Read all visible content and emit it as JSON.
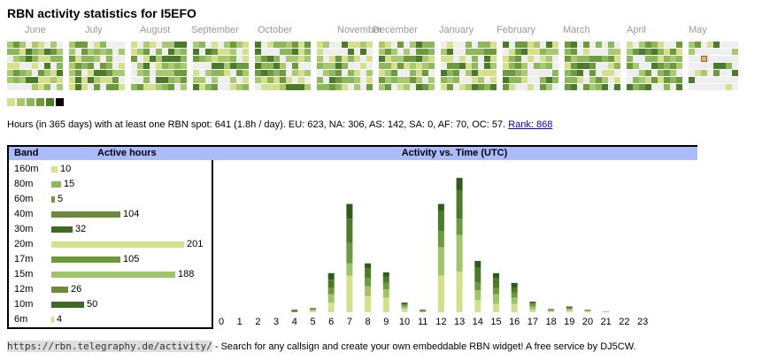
{
  "title": "RBN activity statistics for I5EFO",
  "months": [
    "June",
    "July",
    "August",
    "September",
    "October",
    "November",
    "December",
    "January",
    "February",
    "March",
    "April",
    "May"
  ],
  "colors": {
    "empty": "#eeeeee",
    "levels": [
      "#d5e08b",
      "#a8c970",
      "#8cb75a",
      "#6d9a3c",
      "#4a7a2a",
      "#000000"
    ],
    "header_bg": "#aabbff",
    "today_border": "#e83e1c"
  },
  "summary": {
    "text": "Hours (in 365 days) with at least one RBN spot: 641 (1.8h / day). EU: 623, NA: 306, AS: 142, SA: 0, AF: 70, OC: 57.",
    "rank_link": "Rank: 868"
  },
  "band_table": {
    "col_band": "Band",
    "col_hours": "Active hours",
    "rows": [
      {
        "band": "160m",
        "hours": 10,
        "color": "#d5e08b"
      },
      {
        "band": "80m",
        "hours": 15,
        "color": "#8cb75a"
      },
      {
        "band": "60m",
        "hours": 5,
        "color": "#6d9a3c"
      },
      {
        "band": "40m",
        "hours": 104,
        "color": "#6d8a3c"
      },
      {
        "band": "30m",
        "hours": 32,
        "color": "#3e6a26"
      },
      {
        "band": "20m",
        "hours": 201,
        "color": "#d5e08b"
      },
      {
        "band": "17m",
        "hours": 105,
        "color": "#6a9c3a"
      },
      {
        "band": "15m",
        "hours": 188,
        "color": "#9fc46a"
      },
      {
        "band": "12m",
        "hours": 26,
        "color": "#6d8a3c"
      },
      {
        "band": "10m",
        "hours": 50,
        "color": "#3e6a26"
      },
      {
        "band": "6m",
        "hours": 4,
        "color": "#d5e08b"
      }
    ]
  },
  "chart_data": {
    "type": "bar",
    "title": "Activity vs. Time (UTC)",
    "categories": [
      "0",
      "1",
      "2",
      "3",
      "4",
      "5",
      "6",
      "7",
      "8",
      "9",
      "10",
      "11",
      "12",
      "13",
      "14",
      "15",
      "16",
      "17",
      "18",
      "19",
      "20",
      "21",
      "22",
      "23"
    ],
    "stacked": true,
    "series": [
      {
        "color": "#d5e08b",
        "values": [
          0,
          0,
          0,
          0,
          0,
          2,
          12,
          45,
          20,
          18,
          4,
          0,
          45,
          50,
          15,
          10,
          10,
          3,
          1,
          2,
          1,
          0,
          0,
          0
        ]
      },
      {
        "color": "#9fc46a",
        "values": [
          0,
          0,
          0,
          0,
          0,
          1,
          10,
          15,
          12,
          10,
          3,
          1,
          35,
          45,
          12,
          12,
          8,
          4,
          1,
          2,
          1,
          1,
          0,
          0
        ]
      },
      {
        "color": "#6d9a3c",
        "values": [
          0,
          0,
          0,
          0,
          1,
          1,
          8,
          25,
          10,
          8,
          2,
          1,
          20,
          20,
          10,
          8,
          6,
          3,
          1,
          1,
          0,
          0,
          0,
          0
        ]
      },
      {
        "color": "#4a7a2a",
        "values": [
          0,
          0,
          0,
          0,
          1,
          0,
          10,
          30,
          12,
          8,
          2,
          0,
          25,
          35,
          18,
          12,
          6,
          2,
          1,
          1,
          1,
          0,
          0,
          0
        ]
      },
      {
        "color": "#2f5a1c",
        "values": [
          0,
          0,
          0,
          0,
          1,
          1,
          8,
          18,
          6,
          5,
          1,
          1,
          8,
          15,
          8,
          6,
          6,
          1,
          0,
          1,
          0,
          0,
          0,
          0
        ]
      }
    ],
    "ylim": [
      0,
      176
    ]
  },
  "footer": {
    "url": "https://rbn.telegraphy.de/activity/",
    "text": " - Search for any callsign and create your own embeddable RBN widget! A free service by DJ5CW."
  }
}
